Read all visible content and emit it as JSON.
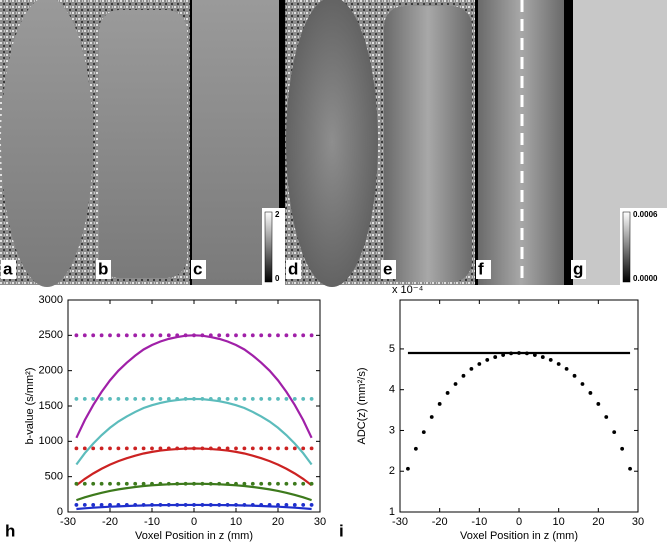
{
  "panels": {
    "labels": [
      "a",
      "b",
      "c",
      "d",
      "e",
      "f",
      "g"
    ],
    "colorbars": [
      {
        "max": "2",
        "min": "0"
      },
      {
        "max": "0.0006",
        "min": "0.0000"
      }
    ]
  },
  "chart_data": [
    {
      "type": "line",
      "panel_label": "h",
      "xlabel": "Voxel Position in z (mm)",
      "ylabel": "b-value (s/mm²)",
      "x": [
        -28,
        -26,
        -24,
        -22,
        -20,
        -18,
        -16,
        -14,
        -12,
        -10,
        -8,
        -6,
        -4,
        -2,
        0,
        2,
        4,
        6,
        8,
        10,
        12,
        14,
        16,
        18,
        20,
        22,
        24,
        26,
        28
      ],
      "xlim": [
        -30,
        30
      ],
      "xticks": [
        -30,
        -20,
        -10,
        0,
        10,
        20,
        30
      ],
      "ylim": [
        0,
        3000
      ],
      "yticks": [
        0,
        500,
        1000,
        1500,
        2000,
        2500,
        3000
      ],
      "series": [
        {
          "color": "#a020a8",
          "style": "solid",
          "values": [
            1050,
            1300,
            1513,
            1700,
            1863,
            2000,
            2113,
            2213,
            2300,
            2363,
            2413,
            2450,
            2475,
            2495,
            2500,
            2495,
            2475,
            2450,
            2413,
            2363,
            2300,
            2213,
            2113,
            2000,
            1863,
            1700,
            1513,
            1300,
            1050
          ]
        },
        {
          "color": "#a020a8",
          "style": "dotted",
          "values": [
            2500,
            2500,
            2500,
            2500,
            2500,
            2500,
            2500,
            2500,
            2500,
            2500,
            2500,
            2500,
            2500,
            2500,
            2500,
            2500,
            2500,
            2500,
            2500,
            2500,
            2500,
            2500,
            2500,
            2500,
            2500,
            2500,
            2500,
            2500,
            2500
          ]
        },
        {
          "color": "#5cbcbc",
          "style": "solid",
          "values": [
            672,
            832,
            968,
            1088,
            1192,
            1280,
            1352,
            1416,
            1472,
            1512,
            1544,
            1568,
            1584,
            1597,
            1600,
            1597,
            1584,
            1568,
            1544,
            1512,
            1472,
            1416,
            1352,
            1280,
            1192,
            1088,
            968,
            832,
            672
          ]
        },
        {
          "color": "#5cbcbc",
          "style": "dotted",
          "values": [
            1600,
            1600,
            1600,
            1600,
            1600,
            1600,
            1600,
            1600,
            1600,
            1600,
            1600,
            1600,
            1600,
            1600,
            1600,
            1600,
            1600,
            1600,
            1600,
            1600,
            1600,
            1600,
            1600,
            1600,
            1600,
            1600,
            1600,
            1600,
            1600
          ]
        },
        {
          "color": "#cc2222",
          "style": "solid",
          "values": [
            378,
            468,
            545,
            612,
            671,
            720,
            761,
            797,
            828,
            851,
            869,
            882,
            891,
            898,
            900,
            898,
            891,
            882,
            869,
            851,
            828,
            797,
            761,
            720,
            671,
            612,
            545,
            468,
            378
          ]
        },
        {
          "color": "#cc2222",
          "style": "dotted",
          "values": [
            900,
            900,
            900,
            900,
            900,
            900,
            900,
            900,
            900,
            900,
            900,
            900,
            900,
            900,
            900,
            900,
            900,
            900,
            900,
            900,
            900,
            900,
            900,
            900,
            900,
            900,
            900,
            900,
            900
          ]
        },
        {
          "color": "#3d7a1c",
          "style": "solid",
          "values": [
            168,
            208,
            242,
            272,
            298,
            320,
            338,
            354,
            368,
            378,
            386,
            392,
            396,
            399,
            400,
            399,
            396,
            392,
            386,
            378,
            368,
            354,
            338,
            320,
            298,
            272,
            242,
            208,
            168
          ]
        },
        {
          "color": "#3d7a1c",
          "style": "dotted",
          "values": [
            400,
            400,
            400,
            400,
            400,
            400,
            400,
            400,
            400,
            400,
            400,
            400,
            400,
            400,
            400,
            400,
            400,
            400,
            400,
            400,
            400,
            400,
            400,
            400,
            400,
            400,
            400,
            400,
            400
          ]
        },
        {
          "color": "#1f2fcc",
          "style": "solid",
          "values": [
            42,
            52,
            61,
            68,
            75,
            80,
            85,
            89,
            92,
            95,
            97,
            98,
            99,
            100,
            100,
            100,
            99,
            98,
            97,
            95,
            92,
            89,
            85,
            80,
            75,
            68,
            61,
            52,
            42
          ]
        },
        {
          "color": "#1f2fcc",
          "style": "dotted",
          "values": [
            100,
            100,
            100,
            100,
            100,
            100,
            100,
            100,
            100,
            100,
            100,
            100,
            100,
            100,
            100,
            100,
            100,
            100,
            100,
            100,
            100,
            100,
            100,
            100,
            100,
            100,
            100,
            100,
            100
          ]
        }
      ]
    },
    {
      "type": "line",
      "panel_label": "i",
      "xlabel": "Voxel Position in z (mm)",
      "ylabel": "ADC(z) (mm²/s)",
      "y_multiplier": "x 10⁻⁴",
      "x": [
        -28,
        -26,
        -24,
        -22,
        -20,
        -18,
        -16,
        -14,
        -12,
        -10,
        -8,
        -6,
        -4,
        -2,
        0,
        2,
        4,
        6,
        8,
        10,
        12,
        14,
        16,
        18,
        20,
        22,
        24,
        26,
        28
      ],
      "xlim": [
        -30,
        30
      ],
      "xticks": [
        -30,
        -20,
        -10,
        0,
        10,
        20,
        30
      ],
      "ylim": [
        1,
        6.2
      ],
      "yticks": [
        1,
        2,
        3,
        4,
        5
      ],
      "series": [
        {
          "color": "#000000",
          "style": "solid",
          "values": [
            4.9,
            4.9,
            4.9,
            4.9,
            4.9,
            4.9,
            4.9,
            4.9,
            4.9,
            4.9,
            4.9,
            4.9,
            4.9,
            4.9,
            4.9,
            4.9,
            4.9,
            4.9,
            4.9,
            4.9,
            4.9,
            4.9,
            4.9,
            4.9,
            4.9,
            4.9,
            4.9,
            4.9,
            4.9
          ]
        },
        {
          "color": "#000000",
          "style": "dotted",
          "values": [
            2.06,
            2.55,
            2.96,
            3.33,
            3.65,
            3.92,
            4.14,
            4.34,
            4.51,
            4.63,
            4.73,
            4.8,
            4.85,
            4.89,
            4.9,
            4.89,
            4.85,
            4.8,
            4.73,
            4.63,
            4.51,
            4.34,
            4.14,
            3.92,
            3.65,
            3.33,
            2.96,
            2.55,
            2.06
          ]
        }
      ]
    }
  ]
}
